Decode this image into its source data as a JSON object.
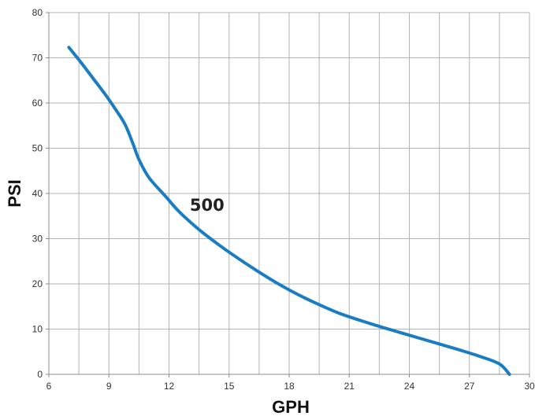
{
  "chart_data": {
    "type": "line",
    "title": "",
    "xlabel": "GPH",
    "ylabel": "PSI",
    "xlim": [
      6,
      30
    ],
    "ylim": [
      0,
      80
    ],
    "x_ticks": [
      6,
      9,
      12,
      15,
      18,
      21,
      24,
      27,
      30
    ],
    "y_ticks": [
      0,
      10,
      20,
      30,
      40,
      50,
      60,
      70,
      80
    ],
    "x_tick_labels": [
      "6",
      "9",
      "12",
      "15",
      "18",
      "21",
      "24",
      "27",
      "30"
    ],
    "y_tick_labels": [
      "0",
      "10",
      "20",
      "30",
      "40",
      "50",
      "60",
      "70",
      "80"
    ],
    "x_gridlines": [
      6,
      7.5,
      9,
      10.5,
      12,
      13.5,
      15,
      16.5,
      18,
      19.5,
      21,
      22.5,
      24,
      25.5,
      27,
      28.5,
      30
    ],
    "grid": true,
    "series": [
      {
        "name": "",
        "color": "#1a7dc4",
        "x": [
          7.0,
          7.6,
          8.2,
          8.8,
          9.3,
          9.8,
          10.2,
          10.5,
          11.0,
          11.8,
          12.5,
          13.5,
          14.5,
          15.5,
          16.5,
          17.5,
          18.5,
          19.5,
          20.5,
          21.5,
          22.5,
          23.5,
          24.5,
          25.5,
          26.5,
          27.5,
          28.5,
          29.0
        ],
        "y": [
          72.3,
          69.0,
          65.5,
          62.0,
          58.8,
          55.3,
          51.0,
          47.5,
          43.5,
          39.5,
          36.0,
          32.0,
          28.6,
          25.5,
          22.6,
          19.9,
          17.5,
          15.4,
          13.5,
          12.0,
          10.6,
          9.3,
          8.0,
          6.7,
          5.4,
          4.0,
          2.3,
          0.0
        ]
      }
    ],
    "annotations": [
      {
        "text": "500",
        "x": 13.9,
        "y": 36.2
      }
    ]
  }
}
